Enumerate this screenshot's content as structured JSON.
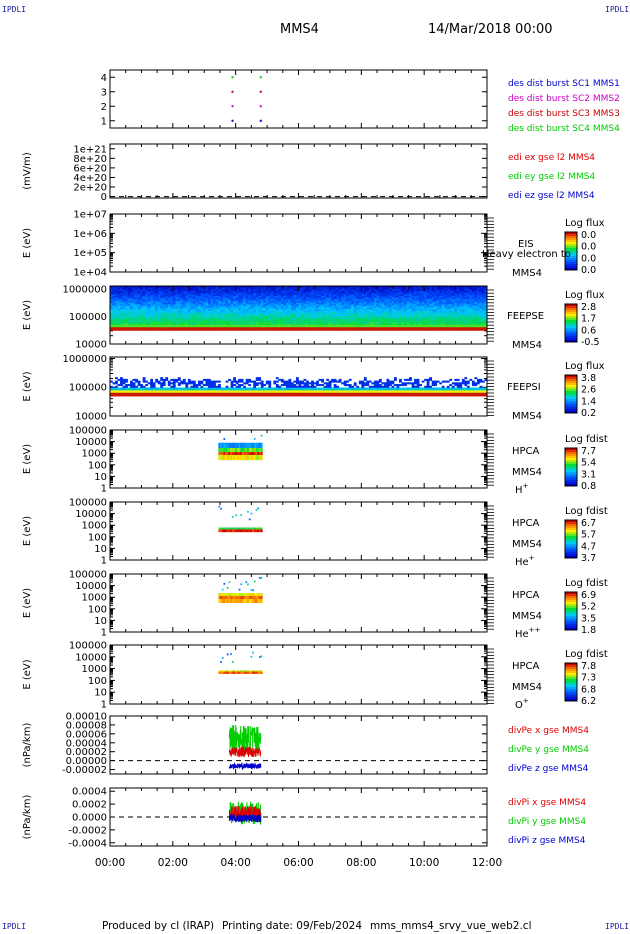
{
  "header": {
    "mission": "MMS4",
    "datetime": "14/Mar/2018 00:00",
    "corner_label": "IPDLI"
  },
  "footer": {
    "produced_by": "Produced by cl (IRAP)",
    "printing_date": "Printing date: 09/Feb/2024",
    "filename": "mms_mms4_srvy_vue_web2.cl"
  },
  "colors": {
    "mms1": "#0000cc",
    "mms2": "#cc00cc",
    "mms3": "#cc0000",
    "mms4": "#00cc00",
    "x_comp": "#dd0000",
    "y_comp": "#00cc00",
    "z_comp": "#0000cc"
  },
  "chart_data": {
    "type": "multi-panel time series / spectrogram",
    "x_axis": {
      "range": [
        "00:00",
        "12:00"
      ],
      "tick_labels": [
        "00:00",
        "02:00",
        "04:00",
        "06:00",
        "08:00",
        "10:00",
        "12:00"
      ],
      "ticks_hours": [
        0,
        2,
        4,
        6,
        8,
        10,
        12
      ]
    },
    "panels": [
      {
        "id": "burst",
        "type": "scatter",
        "ylim": [
          0.5,
          4.5
        ],
        "tick_labels": [
          "4",
          "3",
          "2",
          "1"
        ],
        "tick_values": [
          4,
          3,
          2,
          1
        ],
        "legend": [
          "des dist burst SC1 MMS1",
          "des dist burst SC2 MMS2",
          "des dist burst SC3 MMS3",
          "des dist burst SC4 MMS4"
        ],
        "series": [
          {
            "sc": 1,
            "color_key": "mms1",
            "times_h": [
              3.9,
              4.8
            ]
          },
          {
            "sc": 2,
            "color_key": "mms2",
            "times_h": [
              3.9,
              4.8
            ]
          },
          {
            "sc": 3,
            "color_key": "mms3",
            "times_h": [
              3.9,
              4.8
            ]
          },
          {
            "sc": 4,
            "color_key": "mms4",
            "times_h": [
              3.9,
              4.8
            ]
          }
        ]
      },
      {
        "id": "edi",
        "type": "line",
        "ylabel": "(mV/m)",
        "ylim": [
          -3e+19,
          1.1e+21
        ],
        "tick_labels": [
          "1e+21",
          "8e+20",
          "6e+20",
          "4e+20",
          "2e+20",
          "0"
        ],
        "tick_values": [
          1e+21,
          8e+20,
          6e+20,
          4e+20,
          2e+20,
          0
        ],
        "zero_line": true,
        "legend": [
          "edi ex gse l2 MMS4",
          "edi ey gse l2 MMS4",
          "edi ez gse l2 MMS4"
        ]
      },
      {
        "id": "eis",
        "type": "spectrogram",
        "ylabel": "E (eV)",
        "log_range": [
          4,
          7
        ],
        "tick_labels": [
          "1e+07",
          "1e+06",
          "1e+05",
          "1e+04"
        ],
        "tick_values": [
          7,
          6,
          5,
          4
        ],
        "instrument": "EIS",
        "species": "Heavy electron to",
        "sc": "MMS4",
        "colorbar_title": "Log flux",
        "colorbar_ticks": [
          "0.0",
          "0.0",
          "0.0",
          "0.0"
        ]
      },
      {
        "id": "feepse",
        "type": "spectrogram",
        "ylabel": "E (eV)",
        "log_range": [
          4,
          6.1
        ],
        "tick_labels": [
          "1000000",
          "100000",
          "10000"
        ],
        "tick_values": [
          6,
          5,
          4
        ],
        "instrument": "FEEPSE",
        "sc": "MMS4",
        "colorbar_title": "Log flux",
        "colorbar_ticks": [
          "2.8",
          "1.7",
          "0.6",
          "-0.5"
        ]
      },
      {
        "id": "feepsi",
        "type": "spectrogram",
        "ylabel": "E (eV)",
        "log_range": [
          4,
          6.05
        ],
        "tick_labels": [
          "1000000",
          "100000",
          "10000"
        ],
        "tick_values": [
          6,
          5,
          4
        ],
        "instrument": "FEEPSI",
        "sc": "MMS4",
        "colorbar_title": "Log flux",
        "colorbar_ticks": [
          "3.8",
          "2.6",
          "1.4",
          "0.2"
        ]
      },
      {
        "id": "hpca_h",
        "type": "spectrogram",
        "ylabel": "E (eV)",
        "log_range": [
          0,
          5
        ],
        "tick_labels": [
          "100000",
          "10000",
          "1000",
          "100",
          "10",
          "1"
        ],
        "tick_values": [
          5,
          4,
          3,
          2,
          1,
          0
        ],
        "instrument": "HPCA",
        "sc": "MMS4",
        "species_base": "H",
        "species_sup": "+",
        "colorbar_title": "Log fdist",
        "colorbar_ticks": [
          "7.7",
          "5.4",
          "3.1",
          "0.8"
        ],
        "data_interval_h": [
          3.45,
          4.85
        ]
      },
      {
        "id": "hpca_he",
        "type": "spectrogram",
        "ylabel": "E (eV)",
        "log_range": [
          0,
          5
        ],
        "tick_labels": [
          "100000",
          "10000",
          "1000",
          "100",
          "10",
          "1"
        ],
        "tick_values": [
          5,
          4,
          3,
          2,
          1,
          0
        ],
        "instrument": "HPCA",
        "sc": "MMS4",
        "species_base": "He",
        "species_sup": "+",
        "colorbar_title": "Log fdist",
        "colorbar_ticks": [
          "6.7",
          "5.7",
          "4.7",
          "3.7"
        ],
        "data_interval_h": [
          3.45,
          4.85
        ]
      },
      {
        "id": "hpca_hepp",
        "type": "spectrogram",
        "ylabel": "E (eV)",
        "log_range": [
          0,
          5
        ],
        "tick_labels": [
          "100000",
          "10000",
          "1000",
          "100",
          "10",
          "1"
        ],
        "tick_values": [
          5,
          4,
          3,
          2,
          1,
          0
        ],
        "instrument": "HPCA",
        "sc": "MMS4",
        "species_base": "He",
        "species_sup": "++",
        "colorbar_title": "Log fdist",
        "colorbar_ticks": [
          "6.9",
          "5.2",
          "3.5",
          "1.8"
        ],
        "data_interval_h": [
          3.45,
          4.85
        ]
      },
      {
        "id": "hpca_o",
        "type": "spectrogram",
        "ylabel": "E (eV)",
        "log_range": [
          0,
          5
        ],
        "tick_labels": [
          "100000",
          "10000",
          "1000",
          "100",
          "10",
          "1"
        ],
        "tick_values": [
          5,
          4,
          3,
          2,
          1,
          0
        ],
        "instrument": "HPCA",
        "sc": "MMS4",
        "species_base": "O",
        "species_sup": "+",
        "colorbar_title": "Log fdist",
        "colorbar_ticks": [
          "7.8",
          "7.3",
          "6.8",
          "6.2"
        ],
        "data_interval_h": [
          3.45,
          4.85
        ]
      },
      {
        "id": "divpe",
        "type": "line",
        "ylabel": "(nPa/km)",
        "ylim": [
          -3e-05,
          0.0001
        ],
        "tick_labels": [
          "0.00010",
          "0.00008",
          "0.00006",
          "0.00004",
          "0.00002",
          "0.00000",
          "-0.00002"
        ],
        "tick_values": [
          0.0001,
          8e-05,
          6e-05,
          4e-05,
          2e-05,
          0,
          -2e-05
        ],
        "zero_line": true,
        "data_interval_h": [
          3.8,
          4.8
        ],
        "legend": [
          "divPe x gse MMS4",
          "divPe y gse MMS4",
          "divPe z gse MMS4"
        ],
        "series": [
          {
            "component": "x",
            "color_key": "x_comp",
            "approx_mean": 2e-05,
            "approx_amp": 1.2e-05
          },
          {
            "component": "y",
            "color_key": "y_comp",
            "approx_mean": 5e-05,
            "approx_amp": 3e-05
          },
          {
            "component": "z",
            "color_key": "z_comp",
            "approx_mean": -1.2e-05,
            "approx_amp": 6e-06
          }
        ]
      },
      {
        "id": "divpi",
        "type": "line",
        "ylabel": "(nPa/km)",
        "ylim": [
          -0.00045,
          0.00045
        ],
        "tick_labels": [
          "0.0004",
          "0.0002",
          "0.0000",
          "-0.0002",
          "-0.0004"
        ],
        "tick_values": [
          0.0004,
          0.0002,
          0,
          -0.0002,
          -0.0004
        ],
        "zero_line": true,
        "data_interval_h": [
          3.8,
          4.8
        ],
        "legend": [
          "divPi x gse MMS4",
          "divPi y gse MMS4",
          "divPi z gse MMS4"
        ],
        "series": [
          {
            "component": "x",
            "color_key": "x_comp",
            "approx_mean": 5e-05,
            "approx_amp": 0.00012
          },
          {
            "component": "y",
            "color_key": "y_comp",
            "approx_mean": 6e-05,
            "approx_amp": 0.00018
          },
          {
            "component": "z",
            "color_key": "z_comp",
            "approx_mean": -2e-05,
            "approx_amp": 6e-05
          }
        ]
      }
    ]
  }
}
